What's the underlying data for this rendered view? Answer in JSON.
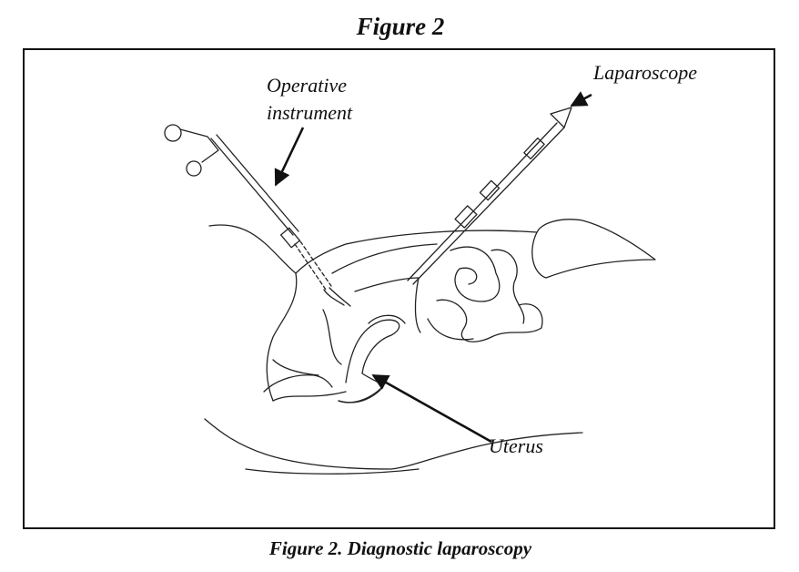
{
  "title": "Figure 2",
  "labels": [
    {
      "lines": [
        "Operative",
        "instrument"
      ]
    },
    {
      "lines": [
        "Laparoscope"
      ]
    },
    {
      "lines": [
        "Uterus"
      ]
    }
  ],
  "caption": "Figure 2. Diagnostic laparoscopy"
}
